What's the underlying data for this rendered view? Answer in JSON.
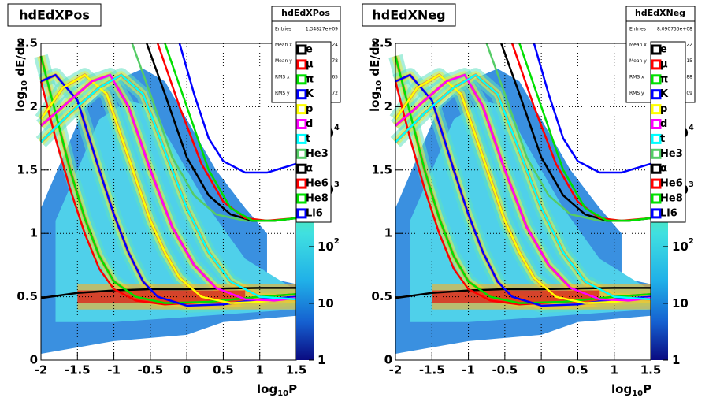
{
  "chart_data": [
    {
      "type": "hist2d-curves",
      "title": "hdEdXPos",
      "xlabel": [
        "log",
        "10",
        "P"
      ],
      "ylabel": [
        "log",
        "10",
        " dE/dx"
      ],
      "xlim": [
        -2,
        1.5
      ],
      "xticks": [
        -2,
        -1.5,
        -1,
        -0.5,
        0,
        0.5,
        1,
        1.5
      ],
      "ylim": [
        0,
        2.5
      ],
      "yticks": [
        0,
        0.5,
        1,
        1.5,
        2,
        2.5
      ],
      "grid": true,
      "zlim": [
        1,
        380000
      ],
      "zlog": true,
      "zticks": [
        {
          "value": 1,
          "label": "1"
        },
        {
          "value": 10,
          "label": "10"
        },
        {
          "value": 100,
          "label": "10",
          "exponent": "2"
        },
        {
          "value": 1000,
          "label": "10",
          "exponent": "3"
        },
        {
          "value": 10000,
          "label": "10",
          "exponent": "4"
        }
      ],
      "stats": {
        "entries_label": "Entries",
        "entries": "1.34827e+09",
        "rows": [
          [
            "Mean x",
            "24"
          ],
          [
            "Mean y",
            "78"
          ],
          [
            "RMS x",
            "65"
          ],
          [
            "RMS y",
            "72"
          ]
        ]
      },
      "series": [
        {
          "name": "e",
          "color": "#000000",
          "x": [
            -2,
            -1.5,
            -1,
            -0.5,
            0,
            0.5,
            1,
            1.5
          ],
          "values": [
            0.49,
            0.53,
            0.55,
            0.56,
            0.56,
            0.565,
            0.57,
            0.57
          ]
        },
        {
          "name": "μ",
          "color": "#ff0000",
          "x": [
            -2,
            -1.8,
            -1.6,
            -1.4,
            -1.2,
            -1,
            -0.7,
            -0.3,
            0.3,
            1,
            1.5
          ],
          "values": [
            2.2,
            1.75,
            1.35,
            1.0,
            0.72,
            0.56,
            0.47,
            0.44,
            0.46,
            0.5,
            0.52
          ]
        },
        {
          "name": "π",
          "color": "#00e000",
          "x": [
            -2,
            -1.8,
            -1.6,
            -1.4,
            -1.2,
            -1,
            -0.7,
            -0.3,
            0.3,
            1,
            1.5
          ],
          "values": [
            2.4,
            1.95,
            1.5,
            1.12,
            0.82,
            0.62,
            0.5,
            0.45,
            0.46,
            0.5,
            0.52
          ]
        },
        {
          "name": "K",
          "color": "#0000ff",
          "x": [
            -2,
            -1.8,
            -1.5,
            -1.2,
            -1,
            -0.8,
            -0.6,
            -0.4,
            0,
            0.5,
            1,
            1.5
          ],
          "values": [
            2.2,
            2.25,
            2.05,
            1.5,
            1.15,
            0.85,
            0.62,
            0.5,
            0.43,
            0.44,
            0.48,
            0.5
          ]
        },
        {
          "name": "p",
          "color": "#ffff00",
          "x": [
            -2,
            -1.7,
            -1.4,
            -1.1,
            -0.8,
            -0.5,
            -0.3,
            -0.1,
            0.2,
            0.6,
            1,
            1.5
          ],
          "values": [
            1.9,
            2.15,
            2.25,
            2.1,
            1.6,
            1.1,
            0.85,
            0.65,
            0.5,
            0.45,
            0.46,
            0.49
          ]
        },
        {
          "name": "d",
          "color": "#ff00ff",
          "x": [
            -2,
            -1.6,
            -1.3,
            -1.05,
            -0.8,
            -0.5,
            -0.2,
            0.1,
            0.4,
            0.8,
            1.2,
            1.5
          ],
          "values": [
            1.85,
            2.05,
            2.2,
            2.25,
            2.0,
            1.5,
            1.05,
            0.75,
            0.57,
            0.48,
            0.47,
            0.49
          ]
        },
        {
          "name": "t",
          "color": "#00ffff",
          "x": [
            -2,
            -1.6,
            -1.2,
            -0.9,
            -0.6,
            -0.3,
            0,
            0.3,
            0.6,
            1,
            1.5
          ],
          "values": [
            1.72,
            1.95,
            2.15,
            2.25,
            2.1,
            1.65,
            1.2,
            0.85,
            0.62,
            0.5,
            0.48
          ]
        },
        {
          "name": "He3",
          "color": "#55cc66",
          "x": [
            -0.75,
            -0.5,
            -0.2,
            0.1,
            0.4,
            0.8,
            1.2,
            1.5
          ],
          "values": [
            2.5,
            2.1,
            1.6,
            1.3,
            1.15,
            1.1,
            1.1,
            1.12
          ]
        },
        {
          "name": "α",
          "color": "#000000",
          "x": [
            -0.55,
            -0.3,
            0,
            0.3,
            0.6,
            0.9,
            1.2,
            1.5
          ],
          "values": [
            2.5,
            2.1,
            1.6,
            1.3,
            1.15,
            1.1,
            1.1,
            1.12
          ]
        },
        {
          "name": "He6",
          "color": "#ff0000",
          "x": [
            -0.4,
            -0.1,
            0.2,
            0.5,
            0.8,
            1.1,
            1.5
          ],
          "values": [
            2.5,
            2.0,
            1.55,
            1.25,
            1.12,
            1.1,
            1.12
          ]
        },
        {
          "name": "He8",
          "color": "#00e000",
          "x": [
            -0.3,
            0,
            0.3,
            0.6,
            0.9,
            1.2,
            1.5
          ],
          "values": [
            2.5,
            2.0,
            1.5,
            1.2,
            1.1,
            1.1,
            1.12
          ]
        },
        {
          "name": "Li6",
          "color": "#0000ff",
          "x": [
            -0.1,
            0.1,
            0.3,
            0.5,
            0.8,
            1.1,
            1.5
          ],
          "values": [
            2.5,
            2.1,
            1.75,
            1.57,
            1.48,
            1.48,
            1.55
          ]
        }
      ]
    },
    {
      "type": "hist2d-curves",
      "title": "hdEdXNeg",
      "xlabel": [
        "log",
        "10",
        "P"
      ],
      "ylabel": [
        "log",
        "10",
        " dE/dx"
      ],
      "xlim": [
        -2,
        1.5
      ],
      "xticks": [
        -2,
        -1.5,
        -1,
        -0.5,
        0,
        0.5,
        1,
        1.5
      ],
      "ylim": [
        0,
        2.5
      ],
      "yticks": [
        0,
        0.5,
        1,
        1.5,
        2,
        2.5
      ],
      "grid": true,
      "zlim": [
        1,
        380000
      ],
      "zlog": true,
      "zticks": [
        {
          "value": 1,
          "label": "1"
        },
        {
          "value": 10,
          "label": "10"
        },
        {
          "value": 100,
          "label": "10",
          "exponent": "2"
        },
        {
          "value": 1000,
          "label": "10",
          "exponent": "3"
        },
        {
          "value": 10000,
          "label": "10",
          "exponent": "4"
        }
      ],
      "stats": {
        "entries_label": "Entries",
        "entries": "8.090755e+08",
        "rows": [
          [
            "Mean x",
            "22"
          ],
          [
            "Mean y",
            "15"
          ],
          [
            "RMS x",
            "88"
          ],
          [
            "RMS y",
            "09"
          ]
        ]
      },
      "series": [
        {
          "name": "e",
          "color": "#000000",
          "x": [
            -2,
            -1.5,
            -1,
            -0.5,
            0,
            0.5,
            1,
            1.5
          ],
          "values": [
            0.49,
            0.53,
            0.55,
            0.56,
            0.56,
            0.565,
            0.57,
            0.57
          ]
        },
        {
          "name": "μ",
          "color": "#ff0000",
          "x": [
            -2,
            -1.8,
            -1.6,
            -1.4,
            -1.2,
            -1,
            -0.7,
            -0.3,
            0.3,
            1,
            1.5
          ],
          "values": [
            2.2,
            1.75,
            1.35,
            1.0,
            0.72,
            0.56,
            0.47,
            0.44,
            0.46,
            0.5,
            0.52
          ]
        },
        {
          "name": "π",
          "color": "#00e000",
          "x": [
            -2,
            -1.8,
            -1.6,
            -1.4,
            -1.2,
            -1,
            -0.7,
            -0.3,
            0.3,
            1,
            1.5
          ],
          "values": [
            2.4,
            1.95,
            1.5,
            1.12,
            0.82,
            0.62,
            0.5,
            0.45,
            0.46,
            0.5,
            0.52
          ]
        },
        {
          "name": "K",
          "color": "#0000ff",
          "x": [
            -2,
            -1.8,
            -1.5,
            -1.2,
            -1,
            -0.8,
            -0.6,
            -0.4,
            0,
            0.5,
            1,
            1.5
          ],
          "values": [
            2.2,
            2.25,
            2.05,
            1.5,
            1.15,
            0.85,
            0.62,
            0.5,
            0.43,
            0.44,
            0.48,
            0.5
          ]
        },
        {
          "name": "p",
          "color": "#ffff00",
          "x": [
            -2,
            -1.7,
            -1.4,
            -1.1,
            -0.8,
            -0.5,
            -0.3,
            -0.1,
            0.2,
            0.6,
            1,
            1.5
          ],
          "values": [
            1.9,
            2.15,
            2.25,
            2.1,
            1.6,
            1.1,
            0.85,
            0.65,
            0.5,
            0.45,
            0.46,
            0.49
          ]
        },
        {
          "name": "d",
          "color": "#ff00ff",
          "x": [
            -2,
            -1.6,
            -1.3,
            -1.05,
            -0.8,
            -0.5,
            -0.2,
            0.1,
            0.4,
            0.8,
            1.2,
            1.5
          ],
          "values": [
            1.85,
            2.05,
            2.2,
            2.25,
            2.0,
            1.5,
            1.05,
            0.75,
            0.57,
            0.48,
            0.47,
            0.49
          ]
        },
        {
          "name": "t",
          "color": "#00ffff",
          "x": [
            -2,
            -1.6,
            -1.2,
            -0.9,
            -0.6,
            -0.3,
            0,
            0.3,
            0.6,
            1,
            1.5
          ],
          "values": [
            1.72,
            1.95,
            2.15,
            2.25,
            2.1,
            1.65,
            1.2,
            0.85,
            0.62,
            0.5,
            0.48
          ]
        },
        {
          "name": "He3",
          "color": "#55cc66",
          "x": [
            -0.75,
            -0.5,
            -0.2,
            0.1,
            0.4,
            0.8,
            1.2,
            1.5
          ],
          "values": [
            2.5,
            2.1,
            1.6,
            1.3,
            1.15,
            1.1,
            1.1,
            1.12
          ]
        },
        {
          "name": "α",
          "color": "#000000",
          "x": [
            -0.55,
            -0.3,
            0,
            0.3,
            0.6,
            0.9,
            1.2,
            1.5
          ],
          "values": [
            2.5,
            2.1,
            1.6,
            1.3,
            1.15,
            1.1,
            1.1,
            1.12
          ]
        },
        {
          "name": "He6",
          "color": "#ff0000",
          "x": [
            -0.4,
            -0.1,
            0.2,
            0.5,
            0.8,
            1.1,
            1.5
          ],
          "values": [
            2.5,
            2.0,
            1.55,
            1.25,
            1.12,
            1.1,
            1.12
          ]
        },
        {
          "name": "He8",
          "color": "#00e000",
          "x": [
            -0.3,
            0,
            0.3,
            0.6,
            0.9,
            1.2,
            1.5
          ],
          "values": [
            2.5,
            2.0,
            1.5,
            1.2,
            1.1,
            1.1,
            1.12
          ]
        },
        {
          "name": "Li6",
          "color": "#0000ff",
          "x": [
            -0.1,
            0.1,
            0.3,
            0.5,
            0.8,
            1.1,
            1.5
          ],
          "values": [
            2.5,
            2.1,
            1.75,
            1.57,
            1.48,
            1.48,
            1.55
          ]
        }
      ]
    }
  ]
}
